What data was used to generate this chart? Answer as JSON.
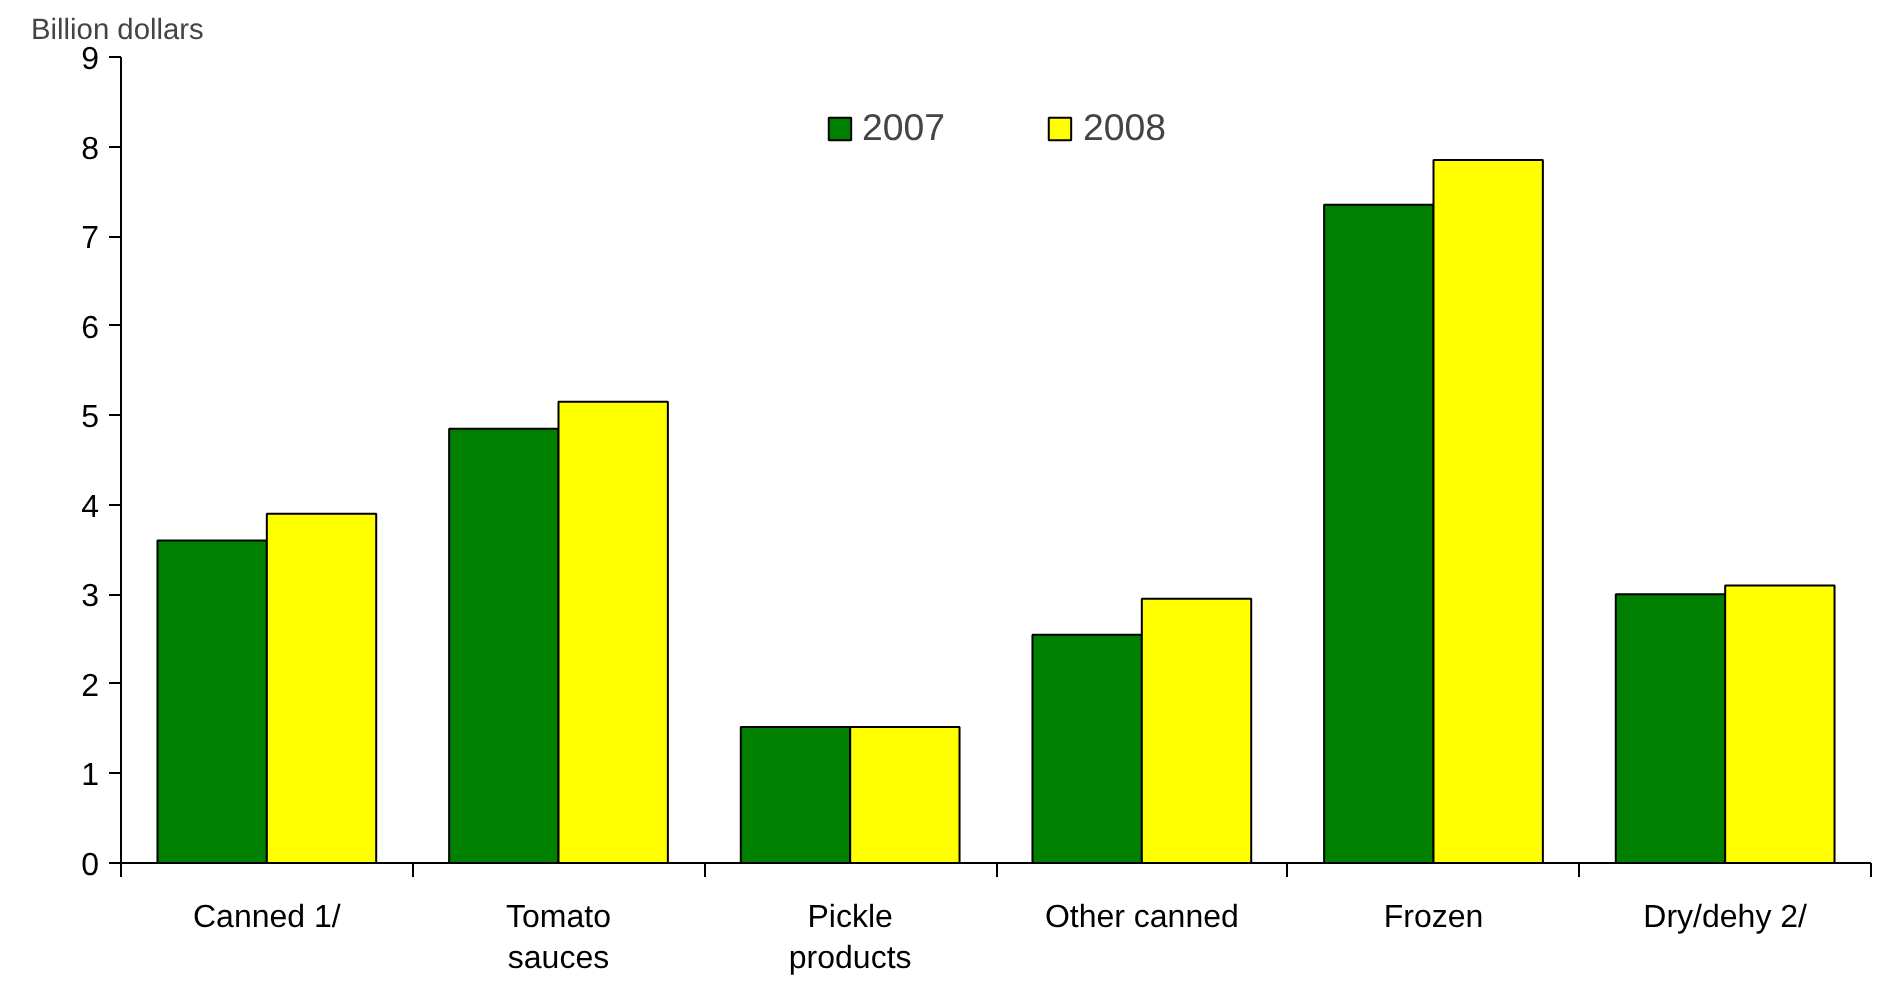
{
  "chart_data": {
    "type": "bar",
    "ylabel": "Billion dollars",
    "categories": [
      "Canned 1/",
      "Tomato\nsauces",
      "Pickle\nproducts",
      "Other canned",
      "Frozen",
      "Dry/dehy 2/"
    ],
    "series": [
      {
        "name": "2007",
        "color": "#008000",
        "values": [
          3.6,
          4.85,
          1.52,
          2.55,
          7.35,
          3.0
        ]
      },
      {
        "name": "2008",
        "color": "#ffff00",
        "values": [
          3.9,
          5.15,
          1.52,
          2.95,
          7.85,
          3.1
        ]
      }
    ],
    "ylim": [
      0,
      9
    ],
    "yticks": [
      0,
      1,
      2,
      3,
      4,
      5,
      6,
      7,
      8,
      9
    ],
    "grid": false,
    "legend": "top"
  }
}
